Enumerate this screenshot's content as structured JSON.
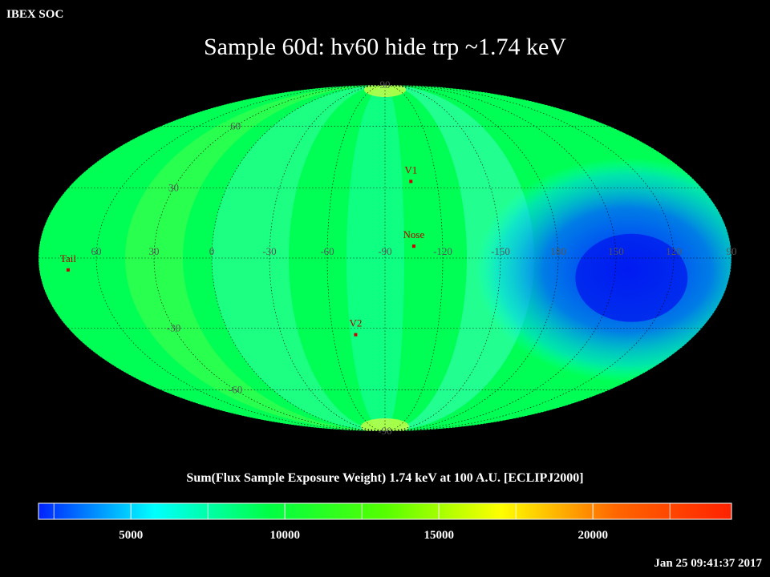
{
  "header": {
    "soc_label": "IBEX SOC",
    "title": "Sample 60d: hv60 hide trp ~1.74 keV"
  },
  "colorbar": {
    "title": "Sum(Flux Sample Exposure Weight)  1.74 keV at 100 A.U. [ECLIPJ2000]",
    "min": 2000,
    "max": 24500,
    "ticks": [
      "5000",
      "10000",
      "15000",
      "20000"
    ],
    "tick_values": [
      5000,
      10000,
      15000,
      20000
    ],
    "colors": [
      "#0022ff",
      "#00ffff",
      "#00ff44",
      "#55ff00",
      "#ffff00",
      "#ff6600",
      "#ff2200"
    ]
  },
  "footer": {
    "timestamp": "Jan 25 09:41:37 2017"
  },
  "map": {
    "projection": "mollweide",
    "background_color": "#00ff55",
    "lon_labels": [
      "60",
      "30",
      "0",
      "-30",
      "-60",
      "-90",
      "-120",
      "-150",
      "180",
      "150",
      "120",
      "90"
    ],
    "lon_values": [
      60,
      30,
      0,
      -30,
      -60,
      -90,
      -120,
      -150,
      180,
      150,
      120,
      90
    ],
    "lat_labels": [
      "90",
      "60",
      "30",
      "-30",
      "-60",
      "-90"
    ],
    "lat_values": [
      90,
      60,
      30,
      -30,
      -60,
      -90
    ],
    "markers": [
      {
        "label": "V1",
        "lon": -105,
        "lat": 33
      },
      {
        "label": "Nose",
        "lon": -105,
        "lat": 5
      },
      {
        "label": "V2",
        "lon": -73,
        "lat": -33
      },
      {
        "label": "Tail",
        "lon": 75,
        "lat": -5
      }
    ],
    "low_flux_region": {
      "center_lon": 150,
      "center_lat": -5,
      "value": 3000
    }
  }
}
